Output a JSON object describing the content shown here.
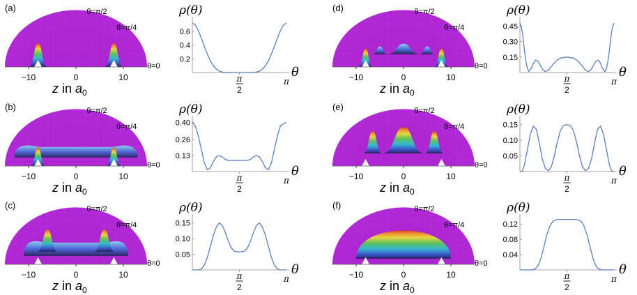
{
  "figure": {
    "panels": [
      {
        "label": "(a)",
        "surface": {
          "angle_labels": [
            "θ=π/2",
            "θ=π/4",
            "θ=0"
          ],
          "axis_label": "z in a",
          "axis_subscript": "0",
          "ticks": [
            "-10",
            "0",
            "10"
          ],
          "features": [
            {
              "center": -8,
              "width": 2.0,
              "height": 0.9,
              "kind": "peak"
            },
            {
              "center": 8,
              "width": 2.0,
              "height": 0.9,
              "kind": "peak"
            }
          ]
        },
        "density_plot": {
          "ylabel": "ρ(θ)",
          "xlabel": "θ",
          "x_tick_labels": {
            "half_pi_num": "π",
            "half_pi_den": "2",
            "pi": "π"
          },
          "y_ticks": [
            "0.2",
            "0.4",
            "0.6"
          ],
          "y_tick_values": [
            0.2,
            0.4,
            0.6
          ],
          "y_max": 0.75,
          "curve": [
            [
              0,
              0.72
            ],
            [
              0.1,
              0.69
            ],
            [
              0.2,
              0.61
            ],
            [
              0.3,
              0.5
            ],
            [
              0.4,
              0.38
            ],
            [
              0.5,
              0.27
            ],
            [
              0.6,
              0.17
            ],
            [
              0.7,
              0.1
            ],
            [
              0.8,
              0.05
            ],
            [
              0.9,
              0.02
            ],
            [
              1.0,
              0.007
            ],
            [
              1.1,
              0.002
            ],
            [
              1.2,
              0.0
            ],
            [
              1.5708,
              0.0
            ],
            [
              1.94,
              0.0
            ],
            [
              2.04,
              0.002
            ],
            [
              2.14,
              0.007
            ],
            [
              2.24,
              0.02
            ],
            [
              2.34,
              0.05
            ],
            [
              2.44,
              0.1
            ],
            [
              2.54,
              0.17
            ],
            [
              2.64,
              0.27
            ],
            [
              2.74,
              0.38
            ],
            [
              2.84,
              0.5
            ],
            [
              2.94,
              0.61
            ],
            [
              3.04,
              0.69
            ],
            [
              3.1416,
              0.72
            ]
          ]
        }
      },
      {
        "label": "(b)",
        "surface": {
          "angle_labels": [
            "θ=π/2",
            "θ=π/4",
            "θ=0"
          ],
          "axis_label": "z in a",
          "axis_subscript": "0",
          "ticks": [
            "-10",
            "0",
            "10"
          ],
          "features": [
            {
              "center": 0,
              "width": 13,
              "height": 0.35,
              "kind": "ridge"
            },
            {
              "center": -8,
              "width": 1.6,
              "height": 0.7,
              "kind": "peak"
            },
            {
              "center": 8,
              "width": 1.6,
              "height": 0.7,
              "kind": "peak"
            }
          ]
        },
        "density_plot": {
          "ylabel": "ρ(θ)",
          "xlabel": "θ",
          "x_tick_labels": {
            "half_pi_num": "π",
            "half_pi_den": "2",
            "pi": "π"
          },
          "y_ticks": [
            "0.13",
            "0.26",
            "0.40"
          ],
          "y_tick_values": [
            0.13,
            0.26,
            0.4
          ],
          "y_max": 0.42,
          "curve": [
            [
              0,
              0.4
            ],
            [
              0.1,
              0.37
            ],
            [
              0.2,
              0.29
            ],
            [
              0.3,
              0.18
            ],
            [
              0.4,
              0.07
            ],
            [
              0.5,
              0.015
            ],
            [
              0.6,
              0.03
            ],
            [
              0.7,
              0.08
            ],
            [
              0.8,
              0.12
            ],
            [
              0.9,
              0.13
            ],
            [
              1.0,
              0.12
            ],
            [
              1.1,
              0.1
            ],
            [
              1.2,
              0.09
            ],
            [
              1.3,
              0.09
            ],
            [
              1.4,
              0.09
            ],
            [
              1.5708,
              0.09
            ],
            [
              1.74,
              0.09
            ],
            [
              1.84,
              0.09
            ],
            [
              1.94,
              0.1
            ],
            [
              2.04,
              0.12
            ],
            [
              2.14,
              0.13
            ],
            [
              2.24,
              0.12
            ],
            [
              2.34,
              0.08
            ],
            [
              2.44,
              0.03
            ],
            [
              2.54,
              0.015
            ],
            [
              2.64,
              0.07
            ],
            [
              2.74,
              0.18
            ],
            [
              2.84,
              0.29
            ],
            [
              2.94,
              0.37
            ],
            [
              3.04,
              0.39
            ],
            [
              3.1416,
              0.4
            ]
          ]
        }
      },
      {
        "label": "(c)",
        "surface": {
          "angle_labels": [
            "θ=π/2",
            "θ=π/4",
            "θ=0"
          ],
          "axis_label": "z in a",
          "axis_subscript": "0",
          "ticks": [
            "-10",
            "0",
            "10"
          ],
          "features": [
            {
              "center": 0,
              "width": 11,
              "height": 0.45,
              "kind": "ridge"
            },
            {
              "center": -6,
              "width": 2.2,
              "height": 0.85,
              "kind": "peak"
            },
            {
              "center": 6,
              "width": 2.2,
              "height": 0.85,
              "kind": "peak"
            }
          ]
        },
        "density_plot": {
          "ylabel": "ρ(θ)",
          "xlabel": "θ",
          "x_tick_labels": {
            "half_pi_num": "π",
            "half_pi_den": "2",
            "pi": "π"
          },
          "y_ticks": [
            "0.05",
            "0.10",
            "0.15"
          ],
          "y_tick_values": [
            0.05,
            0.1,
            0.15
          ],
          "y_max": 0.165,
          "curve": [
            [
              0,
              0.0
            ],
            [
              0.2,
              0.0
            ],
            [
              0.3,
              0.003
            ],
            [
              0.4,
              0.015
            ],
            [
              0.5,
              0.04
            ],
            [
              0.6,
              0.075
            ],
            [
              0.7,
              0.11
            ],
            [
              0.8,
              0.137
            ],
            [
              0.9,
              0.15
            ],
            [
              1.0,
              0.142
            ],
            [
              1.1,
              0.12
            ],
            [
              1.2,
              0.092
            ],
            [
              1.3,
              0.07
            ],
            [
              1.4,
              0.06
            ],
            [
              1.5708,
              0.057
            ],
            [
              1.74,
              0.06
            ],
            [
              1.84,
              0.07
            ],
            [
              1.94,
              0.092
            ],
            [
              2.04,
              0.12
            ],
            [
              2.14,
              0.142
            ],
            [
              2.24,
              0.15
            ],
            [
              2.34,
              0.137
            ],
            [
              2.44,
              0.11
            ],
            [
              2.54,
              0.075
            ],
            [
              2.64,
              0.04
            ],
            [
              2.74,
              0.015
            ],
            [
              2.84,
              0.003
            ],
            [
              2.94,
              0.0
            ],
            [
              3.1416,
              0.0
            ]
          ]
        }
      },
      {
        "label": "(d)",
        "surface": {
          "angle_labels": [
            "θ=π/2",
            "θ=π/4",
            "θ=0"
          ],
          "axis_label": "z in a",
          "axis_subscript": "0",
          "ticks": [
            "-10",
            "0",
            "10"
          ],
          "features": [
            {
              "center": 0,
              "width": 3.5,
              "height": 0.4,
              "kind": "peak"
            },
            {
              "center": -5,
              "width": 1.6,
              "height": 0.3,
              "kind": "peak"
            },
            {
              "center": 5,
              "width": 1.6,
              "height": 0.3,
              "kind": "peak"
            },
            {
              "center": -8,
              "width": 1.5,
              "height": 0.7,
              "kind": "peak"
            },
            {
              "center": 8,
              "width": 1.5,
              "height": 0.7,
              "kind": "peak"
            }
          ]
        },
        "density_plot": {
          "ylabel": "ρ(θ)",
          "xlabel": "θ",
          "x_tick_labels": {
            "half_pi_num": "π",
            "half_pi_den": "2",
            "pi": "π"
          },
          "y_ticks": [
            "0.15",
            "0.30",
            "0.45"
          ],
          "y_tick_values": [
            0.15,
            0.3,
            0.45
          ],
          "y_max": 0.5,
          "curve": [
            [
              0,
              0.48
            ],
            [
              0.05,
              0.44
            ],
            [
              0.1,
              0.35
            ],
            [
              0.15,
              0.22
            ],
            [
              0.2,
              0.11
            ],
            [
              0.25,
              0.04
            ],
            [
              0.3,
              0.01
            ],
            [
              0.38,
              0.04
            ],
            [
              0.45,
              0.09
            ],
            [
              0.52,
              0.12
            ],
            [
              0.6,
              0.11
            ],
            [
              0.68,
              0.07
            ],
            [
              0.76,
              0.03
            ],
            [
              0.84,
              0.01
            ],
            [
              0.95,
              0.02
            ],
            [
              1.05,
              0.06
            ],
            [
              1.2,
              0.11
            ],
            [
              1.35,
              0.14
            ],
            [
              1.5708,
              0.15
            ],
            [
              1.79,
              0.14
            ],
            [
              1.94,
              0.11
            ],
            [
              2.09,
              0.06
            ],
            [
              2.19,
              0.02
            ],
            [
              2.3,
              0.01
            ],
            [
              2.38,
              0.03
            ],
            [
              2.46,
              0.07
            ],
            [
              2.54,
              0.11
            ],
            [
              2.62,
              0.12
            ],
            [
              2.69,
              0.09
            ],
            [
              2.76,
              0.04
            ],
            [
              2.84,
              0.01
            ],
            [
              2.89,
              0.04
            ],
            [
              2.94,
              0.11
            ],
            [
              2.99,
              0.22
            ],
            [
              3.04,
              0.35
            ],
            [
              3.09,
              0.44
            ],
            [
              3.1416,
              0.48
            ]
          ]
        }
      },
      {
        "label": "(e)",
        "surface": {
          "angle_labels": [
            "θ=π/2",
            "θ=π/4",
            "θ=0"
          ],
          "axis_label": "z in a",
          "axis_subscript": "0",
          "ticks": [
            "-10",
            "0",
            "10"
          ],
          "features": [
            {
              "center": 0,
              "width": 4.5,
              "height": 1.0,
              "kind": "peak"
            },
            {
              "center": -6.5,
              "width": 2.0,
              "height": 0.85,
              "kind": "peak"
            },
            {
              "center": 6.5,
              "width": 2.0,
              "height": 0.85,
              "kind": "peak"
            }
          ]
        },
        "density_plot": {
          "ylabel": "ρ(θ)",
          "xlabel": "θ",
          "x_tick_labels": {
            "half_pi_num": "π",
            "half_pi_den": "2",
            "pi": "π"
          },
          "y_ticks": [
            "0.05",
            "0.10",
            "0.15"
          ],
          "y_tick_values": [
            0.05,
            0.1,
            0.15
          ],
          "y_max": 0.165,
          "curve": [
            [
              0,
              0.0
            ],
            [
              0.08,
              0.002
            ],
            [
              0.15,
              0.02
            ],
            [
              0.25,
              0.07
            ],
            [
              0.35,
              0.12
            ],
            [
              0.45,
              0.145
            ],
            [
              0.55,
              0.135
            ],
            [
              0.65,
              0.09
            ],
            [
              0.75,
              0.04
            ],
            [
              0.85,
              0.01
            ],
            [
              0.95,
              0.003
            ],
            [
              1.05,
              0.015
            ],
            [
              1.15,
              0.05
            ],
            [
              1.25,
              0.095
            ],
            [
              1.35,
              0.13
            ],
            [
              1.45,
              0.147
            ],
            [
              1.5708,
              0.15
            ],
            [
              1.69,
              0.147
            ],
            [
              1.79,
              0.13
            ],
            [
              1.89,
              0.095
            ],
            [
              1.99,
              0.05
            ],
            [
              2.09,
              0.015
            ],
            [
              2.19,
              0.003
            ],
            [
              2.29,
              0.01
            ],
            [
              2.39,
              0.04
            ],
            [
              2.49,
              0.09
            ],
            [
              2.59,
              0.135
            ],
            [
              2.69,
              0.145
            ],
            [
              2.79,
              0.12
            ],
            [
              2.89,
              0.07
            ],
            [
              2.99,
              0.02
            ],
            [
              3.06,
              0.002
            ],
            [
              3.1416,
              0.0
            ]
          ]
        }
      },
      {
        "label": "(f)",
        "surface": {
          "angle_labels": [
            "θ=π/2",
            "θ=π/4",
            "θ=0"
          ],
          "axis_label": "z in a",
          "axis_subscript": "0",
          "ticks": [
            "-10",
            "0",
            "10"
          ],
          "features": [
            {
              "center": 0,
              "width": 10,
              "height": 1.0,
              "kind": "dome"
            }
          ]
        },
        "density_plot": {
          "ylabel": "ρ(θ)",
          "xlabel": "θ",
          "x_tick_labels": {
            "half_pi_num": "π",
            "half_pi_den": "2",
            "pi": "π"
          },
          "y_ticks": [
            "0.04",
            "0.08",
            "0.12"
          ],
          "y_tick_values": [
            0.04,
            0.08,
            0.12
          ],
          "y_max": 0.135,
          "curve": [
            [
              0,
              0.0
            ],
            [
              0.4,
              0.0
            ],
            [
              0.5,
              0.002
            ],
            [
              0.6,
              0.01
            ],
            [
              0.7,
              0.03
            ],
            [
              0.8,
              0.06
            ],
            [
              0.9,
              0.092
            ],
            [
              1.0,
              0.115
            ],
            [
              1.1,
              0.127
            ],
            [
              1.2,
              0.131
            ],
            [
              1.3,
              0.132
            ],
            [
              1.5708,
              0.132
            ],
            [
              1.84,
              0.132
            ],
            [
              1.94,
              0.131
            ],
            [
              2.04,
              0.127
            ],
            [
              2.14,
              0.115
            ],
            [
              2.24,
              0.092
            ],
            [
              2.34,
              0.06
            ],
            [
              2.44,
              0.03
            ],
            [
              2.54,
              0.01
            ],
            [
              2.64,
              0.002
            ],
            [
              2.74,
              0.0
            ],
            [
              3.1416,
              0.0
            ]
          ]
        }
      }
    ]
  }
}
